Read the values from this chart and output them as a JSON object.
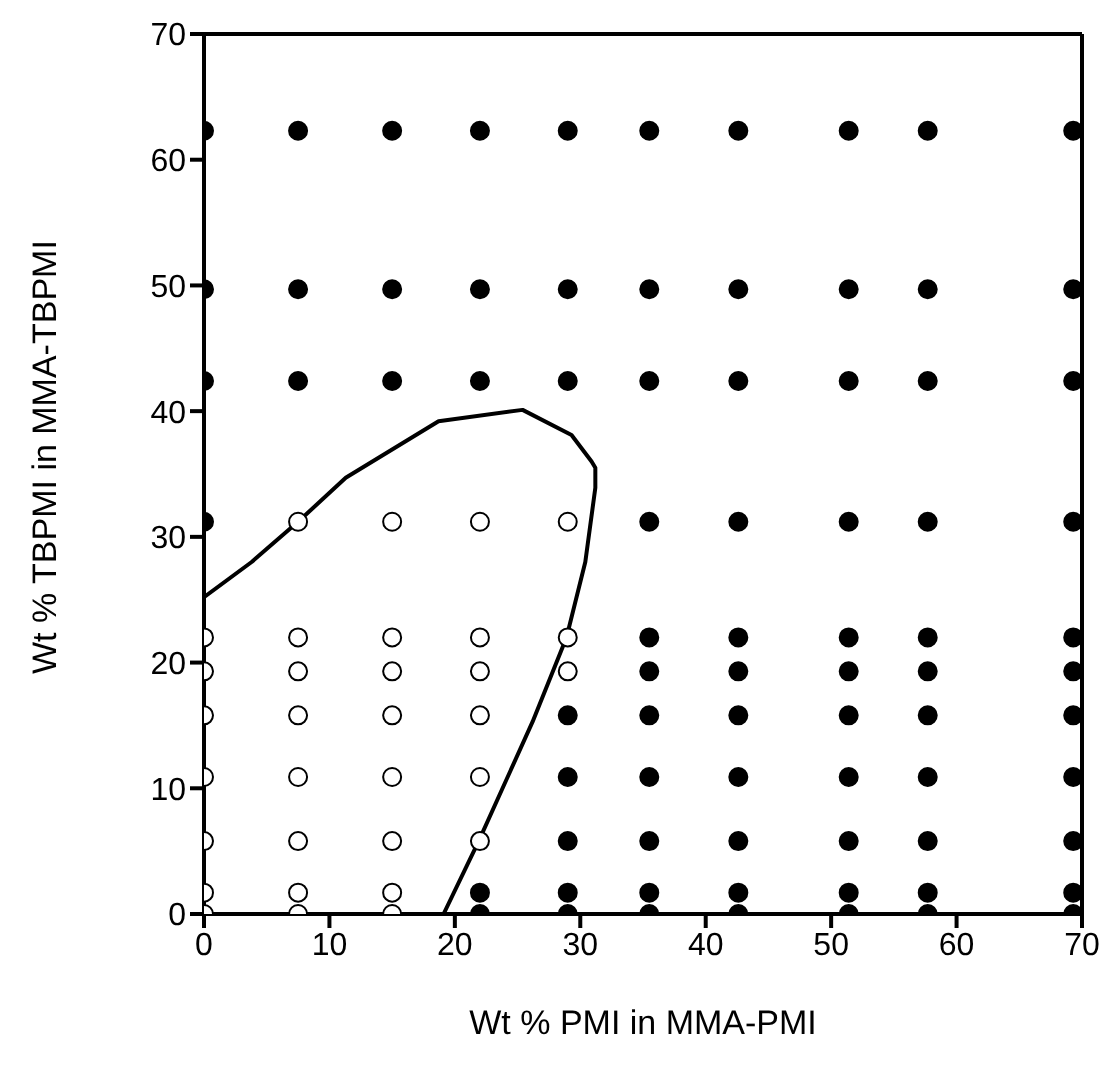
{
  "chart_data": {
    "type": "scatter",
    "xlabel": "Wt % PMI in MMA-PMI",
    "ylabel": "Wt % TBPMI in MMA-TBPMI",
    "xlim": [
      0,
      70
    ],
    "ylim": [
      0,
      70
    ],
    "xticks": [
      0,
      10,
      20,
      30,
      40,
      50,
      60,
      70
    ],
    "yticks": [
      0,
      10,
      20,
      30,
      40,
      50,
      60,
      70
    ],
    "marker": "circle",
    "grid": false,
    "series": [
      {
        "color": "#000000",
        "x": [
          0,
          7.5,
          15,
          22,
          29,
          35.5,
          42.6,
          51.4,
          57.7,
          69.3,
          0,
          7.5,
          15,
          22,
          29,
          35.5,
          42.6,
          51.4,
          57.7,
          69.3,
          0,
          7.5,
          15,
          22,
          29,
          35.5,
          42.6,
          51.4,
          57.7,
          69.3,
          0,
          35.5,
          42.6,
          51.4,
          57.7,
          69.3,
          35.5,
          42.6,
          51.4,
          57.7,
          69.3,
          35.5,
          42.6,
          51.4,
          57.7,
          69.3,
          29,
          35.5,
          42.6,
          51.4,
          57.7,
          69.3,
          29,
          35.5,
          42.6,
          51.4,
          57.7,
          69.3,
          29,
          35.5,
          42.6,
          51.4,
          57.7,
          69.3,
          22,
          29,
          35.5,
          42.6,
          51.4,
          57.7,
          69.3,
          22,
          29,
          35.5,
          42.6,
          51.4,
          57.7,
          69.3
        ],
        "values": [
          62.3,
          62.3,
          62.3,
          62.3,
          62.3,
          62.3,
          62.3,
          62.3,
          62.3,
          62.3,
          49.7,
          49.7,
          49.7,
          49.7,
          49.7,
          49.7,
          49.7,
          49.7,
          49.7,
          49.7,
          42.4,
          42.4,
          42.4,
          42.4,
          42.4,
          42.4,
          42.4,
          42.4,
          42.4,
          42.4,
          31.2,
          31.2,
          31.2,
          31.2,
          31.2,
          31.2,
          22,
          22,
          22,
          22,
          22,
          19.3,
          19.3,
          19.3,
          19.3,
          19.3,
          15.8,
          15.8,
          15.8,
          15.8,
          15.8,
          15.8,
          10.9,
          10.9,
          10.9,
          10.9,
          10.9,
          10.9,
          5.8,
          5.8,
          5.8,
          5.8,
          5.8,
          5.8,
          1.7,
          1.7,
          1.7,
          1.7,
          1.7,
          1.7,
          1.7,
          0,
          0,
          0,
          0,
          0,
          0,
          0
        ]
      },
      {
        "color": "#ffffff",
        "x": [
          7.5,
          15,
          22,
          29,
          0,
          7.5,
          15,
          22,
          29,
          0,
          7.5,
          15,
          22,
          29,
          0,
          7.5,
          15,
          22,
          0,
          7.5,
          15,
          22,
          0,
          7.5,
          15,
          22,
          0,
          7.5,
          15,
          0,
          7.5,
          15
        ],
        "values": [
          31.2,
          31.2,
          31.2,
          31.2,
          22,
          22,
          22,
          22,
          22,
          19.3,
          19.3,
          19.3,
          19.3,
          19.3,
          15.8,
          15.8,
          15.8,
          15.8,
          10.9,
          10.9,
          10.9,
          10.9,
          5.8,
          5.8,
          5.8,
          5.8,
          1.7,
          1.7,
          1.7,
          0,
          0,
          0
        ]
      },
      {
        "type": "line",
        "color": "#000000",
        "marker": "none",
        "x": [
          0,
          3.8,
          7.5,
          11.3,
          18.7,
          25.4,
          29.3,
          30.9,
          31.2,
          31.2,
          30.4,
          28.9,
          26.2,
          21.9,
          19.1
        ],
        "values": [
          25.2,
          28,
          31.2,
          34.7,
          39.2,
          40.1,
          38.1,
          36,
          35.5,
          33.9,
          28,
          22,
          15.3,
          5.8,
          0
        ]
      }
    ]
  }
}
